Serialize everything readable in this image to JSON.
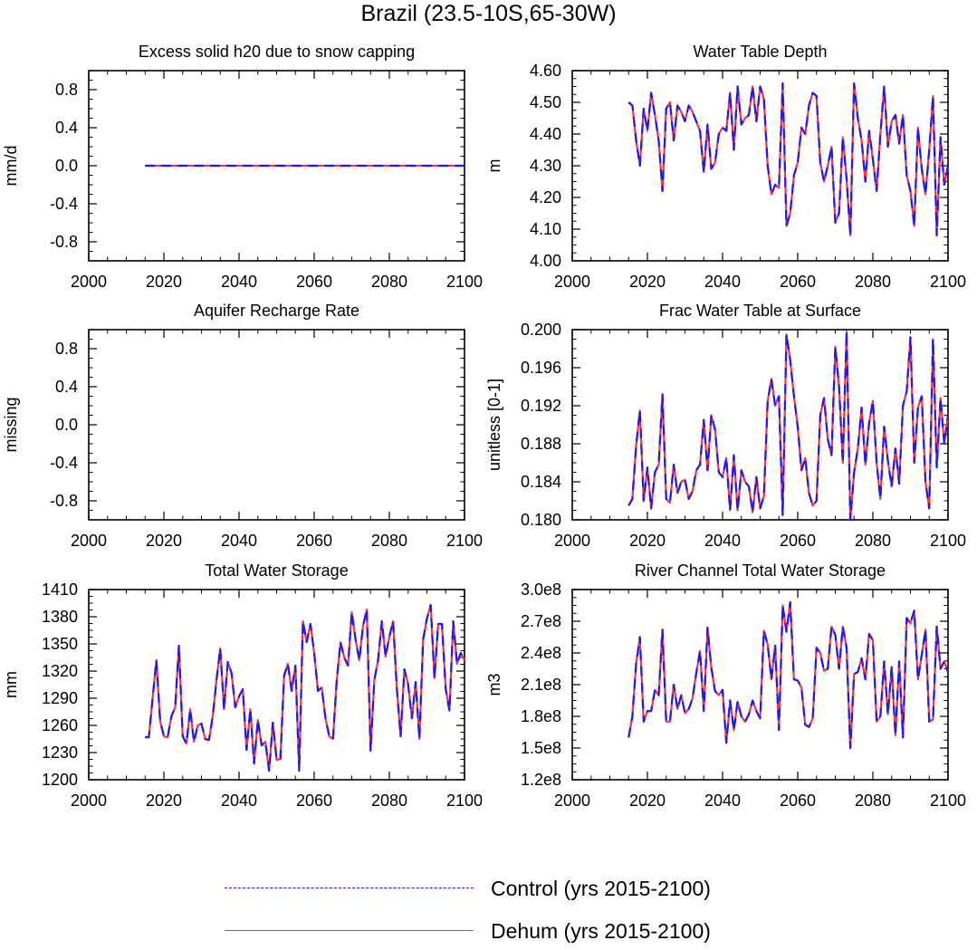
{
  "title": "Brazil (23.5-10S,65-30W)",
  "legend": [
    {
      "label": "Control (yrs 2015-2100)",
      "color": "#1a1aff",
      "style": "dashed"
    },
    {
      "label": "Dehum (yrs 2015-2100)",
      "color": "#ff3333",
      "style": "solid"
    }
  ],
  "years": [
    2015,
    2016,
    2017,
    2018,
    2019,
    2020,
    2021,
    2022,
    2023,
    2024,
    2025,
    2026,
    2027,
    2028,
    2029,
    2030,
    2031,
    2032,
    2033,
    2034,
    2035,
    2036,
    2037,
    2038,
    2039,
    2040,
    2041,
    2042,
    2043,
    2044,
    2045,
    2046,
    2047,
    2048,
    2049,
    2050,
    2051,
    2052,
    2053,
    2054,
    2055,
    2056,
    2057,
    2058,
    2059,
    2060,
    2061,
    2062,
    2063,
    2064,
    2065,
    2066,
    2067,
    2068,
    2069,
    2070,
    2071,
    2072,
    2073,
    2074,
    2075,
    2076,
    2077,
    2078,
    2079,
    2080,
    2081,
    2082,
    2083,
    2084,
    2085,
    2086,
    2087,
    2088,
    2089,
    2090,
    2091,
    2092,
    2093,
    2094,
    2095,
    2096,
    2097,
    2098,
    2099,
    2100
  ],
  "chart_data": [
    {
      "id": "excess-solid",
      "type": "line",
      "title": "Excess solid h20 due to snow capping",
      "xlabel": "",
      "ylabel": "mm/d",
      "xlim": [
        2000,
        2100
      ],
      "ylim": [
        -1,
        1
      ],
      "xticks": [
        2000,
        2020,
        2040,
        2060,
        2080,
        2100
      ],
      "xtick_labels": [
        "2000",
        "2020",
        "2040",
        "2060",
        "2080",
        "2100"
      ],
      "yticks": [
        -0.8,
        -0.4,
        0.0,
        0.4,
        0.8
      ],
      "ytick_labels": [
        "-0.8",
        "-0.4",
        "0.0",
        "0.4",
        "0.8"
      ],
      "constant": 0
    },
    {
      "id": "water-table-depth",
      "type": "line",
      "title": "Water Table Depth",
      "xlabel": "",
      "ylabel": "m",
      "xlim": [
        2000,
        2100
      ],
      "ylim": [
        4.0,
        4.6
      ],
      "xticks": [
        2000,
        2020,
        2040,
        2060,
        2080,
        2100
      ],
      "xtick_labels": [
        "2000",
        "2020",
        "2040",
        "2060",
        "2080",
        "2100"
      ],
      "yticks": [
        4.0,
        4.1,
        4.2,
        4.3,
        4.4,
        4.5,
        4.6
      ],
      "ytick_labels": [
        "4.00",
        "4.10",
        "4.20",
        "4.30",
        "4.40",
        "4.50",
        "4.60"
      ],
      "values": [
        4.5,
        4.49,
        4.38,
        4.3,
        4.48,
        4.41,
        4.53,
        4.46,
        4.38,
        4.22,
        4.48,
        4.5,
        4.38,
        4.49,
        4.47,
        4.44,
        4.49,
        4.47,
        4.44,
        4.41,
        4.28,
        4.43,
        4.29,
        4.31,
        4.4,
        4.42,
        4.41,
        4.53,
        4.35,
        4.55,
        4.43,
        4.45,
        4.46,
        4.55,
        4.44,
        4.55,
        4.51,
        4.3,
        4.21,
        4.24,
        4.23,
        4.56,
        4.11,
        4.15,
        4.27,
        4.31,
        4.42,
        4.4,
        4.49,
        4.53,
        4.52,
        4.31,
        4.25,
        4.3,
        4.36,
        4.12,
        4.15,
        4.39,
        4.26,
        4.08,
        4.56,
        4.45,
        4.38,
        4.25,
        4.41,
        4.32,
        4.22,
        4.4,
        4.55,
        4.36,
        4.44,
        4.46,
        4.37,
        4.46,
        4.27,
        4.22,
        4.11,
        4.42,
        4.29,
        4.21,
        4.35,
        4.52,
        4.08,
        4.39,
        4.24,
        4.3
      ]
    },
    {
      "id": "aquifer-recharge",
      "type": "line",
      "title": "Aquifer Recharge Rate",
      "xlabel": "",
      "ylabel": "missing",
      "xlim": [
        2000,
        2100
      ],
      "ylim": [
        -1,
        1
      ],
      "xticks": [
        2000,
        2020,
        2040,
        2060,
        2080,
        2100
      ],
      "xtick_labels": [
        "2000",
        "2020",
        "2040",
        "2060",
        "2080",
        "2100"
      ],
      "yticks": [
        -0.8,
        -0.4,
        0.0,
        0.4,
        0.8
      ],
      "ytick_labels": [
        "-0.8",
        "-0.4",
        "0.0",
        "0.4",
        "0.8"
      ]
    },
    {
      "id": "frac-water-table",
      "type": "line",
      "title": "Frac Water Table at Surface",
      "xlabel": "",
      "ylabel": "unitless [0-1]",
      "xlim": [
        2000,
        2100
      ],
      "ylim": [
        0.18,
        0.2
      ],
      "xticks": [
        2000,
        2020,
        2040,
        2060,
        2080,
        2100
      ],
      "xtick_labels": [
        "2000",
        "2020",
        "2040",
        "2060",
        "2080",
        "2100"
      ],
      "yticks": [
        0.18,
        0.184,
        0.188,
        0.192,
        0.196,
        0.2
      ],
      "ytick_labels": [
        "0.180",
        "0.184",
        "0.188",
        "0.192",
        "0.196",
        "0.200"
      ],
      "values": [
        0.1815,
        0.1822,
        0.1878,
        0.1915,
        0.182,
        0.1855,
        0.1812,
        0.185,
        0.1858,
        0.1932,
        0.1822,
        0.1818,
        0.1858,
        0.1828,
        0.184,
        0.1842,
        0.1822,
        0.183,
        0.1852,
        0.1858,
        0.1905,
        0.1852,
        0.191,
        0.1895,
        0.185,
        0.1845,
        0.1865,
        0.181,
        0.1868,
        0.181,
        0.1852,
        0.184,
        0.1835,
        0.1808,
        0.1845,
        0.1812,
        0.1825,
        0.1925,
        0.1948,
        0.192,
        0.193,
        0.1805,
        0.1995,
        0.1968,
        0.193,
        0.1898,
        0.1852,
        0.1865,
        0.1828,
        0.1815,
        0.182,
        0.191,
        0.1928,
        0.1885,
        0.1868,
        0.1982,
        0.194,
        0.186,
        0.1998,
        0.18,
        0.185,
        0.1875,
        0.1918,
        0.1858,
        0.1902,
        0.1925,
        0.186,
        0.1822,
        0.1898,
        0.1862,
        0.1835,
        0.1875,
        0.1838,
        0.192,
        0.1935,
        0.1992,
        0.186,
        0.1918,
        0.193,
        0.184,
        0.1812,
        0.199,
        0.1855,
        0.1928,
        0.188,
        0.191
      ]
    },
    {
      "id": "total-water-storage",
      "type": "line",
      "title": "Total Water Storage",
      "xlabel": "",
      "ylabel": "mm",
      "xlim": [
        2000,
        2100
      ],
      "ylim": [
        1200,
        1410
      ],
      "xticks": [
        2000,
        2020,
        2040,
        2060,
        2080,
        2100
      ],
      "xtick_labels": [
        "2000",
        "2020",
        "2040",
        "2060",
        "2080",
        "2100"
      ],
      "yticks": [
        1200,
        1230,
        1260,
        1290,
        1320,
        1350,
        1380,
        1410
      ],
      "ytick_labels": [
        "1200",
        "1230",
        "1260",
        "1290",
        "1320",
        "1350",
        "1380",
        "1410"
      ],
      "values": [
        1247,
        1247,
        1290,
        1332,
        1265,
        1248,
        1247,
        1270,
        1280,
        1348,
        1248,
        1240,
        1278,
        1242,
        1260,
        1262,
        1245,
        1244,
        1270,
        1310,
        1345,
        1278,
        1330,
        1318,
        1280,
        1292,
        1300,
        1233,
        1278,
        1218,
        1266,
        1238,
        1242,
        1210,
        1263,
        1222,
        1223,
        1315,
        1328,
        1298,
        1326,
        1210,
        1375,
        1352,
        1372,
        1340,
        1298,
        1302,
        1268,
        1248,
        1245,
        1310,
        1352,
        1335,
        1326,
        1385,
        1355,
        1332,
        1370,
        1388,
        1232,
        1310,
        1332,
        1375,
        1336,
        1358,
        1375,
        1300,
        1248,
        1322,
        1305,
        1268,
        1308,
        1245,
        1355,
        1378,
        1393,
        1312,
        1372,
        1372,
        1300,
        1276,
        1375,
        1328,
        1340,
        1332
      ]
    },
    {
      "id": "river-channel-storage",
      "type": "line",
      "title": "River Channel Total Water Storage",
      "xlabel": "",
      "ylabel": "m3",
      "xlim": [
        2000,
        2100
      ],
      "ylim": [
        120000000,
        300000000
      ],
      "xticks": [
        2000,
        2020,
        2040,
        2060,
        2080,
        2100
      ],
      "xtick_labels": [
        "2000",
        "2020",
        "2040",
        "2060",
        "2080",
        "2100"
      ],
      "yticks": [
        120000000,
        150000000,
        180000000,
        210000000,
        240000000,
        270000000,
        300000000
      ],
      "ytick_labels": [
        "1.2e8",
        "1.5e8",
        "1.8e8",
        "2.1e8",
        "2.4e8",
        "2.7e8",
        "3.0e8"
      ],
      "values": [
        160000000,
        180000000,
        230000000,
        255000000,
        175000000,
        185000000,
        185000000,
        205000000,
        200000000,
        262000000,
        175000000,
        175000000,
        210000000,
        187000000,
        200000000,
        183000000,
        187000000,
        197000000,
        221000000,
        242000000,
        185000000,
        264000000,
        226000000,
        204000000,
        200000000,
        205000000,
        155000000,
        195000000,
        167000000,
        194000000,
        180000000,
        175000000,
        182000000,
        195000000,
        185000000,
        178000000,
        261000000,
        248000000,
        215000000,
        247000000,
        167000000,
        285000000,
        260000000,
        288000000,
        215000000,
        214000000,
        207000000,
        172000000,
        170000000,
        178000000,
        245000000,
        240000000,
        223000000,
        225000000,
        265000000,
        257000000,
        225000000,
        265000000,
        245000000,
        150000000,
        220000000,
        222000000,
        235000000,
        215000000,
        258000000,
        252000000,
        175000000,
        180000000,
        232000000,
        182000000,
        227000000,
        162000000,
        232000000,
        160000000,
        273000000,
        268000000,
        280000000,
        215000000,
        238000000,
        262000000,
        175000000,
        177000000,
        265000000,
        225000000,
        232000000,
        222000000
      ]
    }
  ]
}
